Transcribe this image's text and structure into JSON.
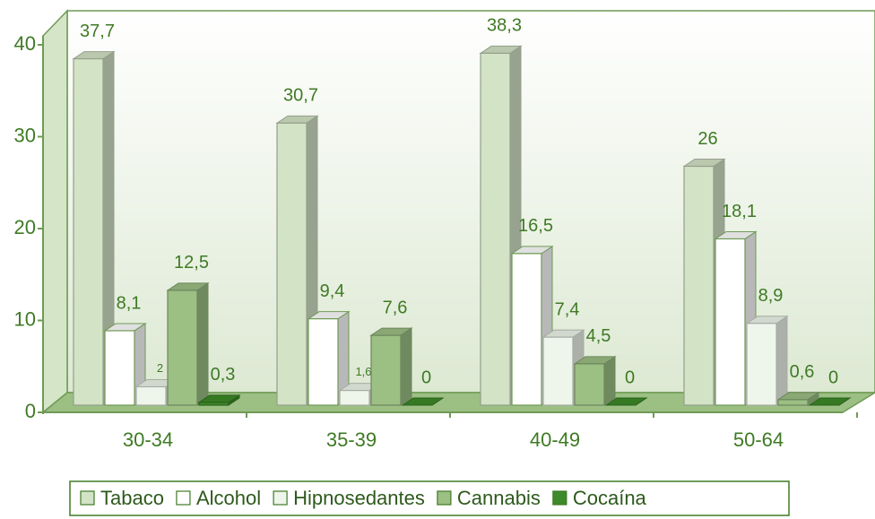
{
  "chart_data": {
    "type": "bar3d",
    "categories": [
      "30-34",
      "35-39",
      "40-49",
      "50-64"
    ],
    "series": [
      {
        "name": "Tabaco",
        "color": "#d3e3c6",
        "values": [
          37.7,
          30.7,
          38.3,
          26
        ],
        "value_labels": [
          "37,7",
          "30,7",
          "38,3",
          "26"
        ]
      },
      {
        "name": "Alcohol",
        "color": "#ffffff",
        "values": [
          8.1,
          9.4,
          16.5,
          18.1
        ],
        "value_labels": [
          "8,1",
          "9,4",
          "16,5",
          "18,1"
        ]
      },
      {
        "name": "Hipnosedantes",
        "color": "#eef5ea",
        "values": [
          2,
          1.6,
          7.4,
          8.9
        ],
        "value_labels": [
          "2",
          "1,6",
          "7,4",
          "8,9"
        ]
      },
      {
        "name": "Cannabis",
        "color": "#9cbf84",
        "values": [
          12.5,
          7.6,
          4.5,
          0.6
        ],
        "value_labels": [
          "12,5",
          "7,6",
          "4,5",
          "0,6"
        ]
      },
      {
        "name": "Cocaína",
        "color": "#3d8a28",
        "values": [
          0.3,
          0,
          0,
          0
        ],
        "value_labels": [
          "0,3",
          "0",
          "0",
          "0"
        ]
      }
    ],
    "ylim": [
      0,
      40
    ],
    "yticks": [
      0,
      10,
      20,
      30,
      40
    ]
  }
}
